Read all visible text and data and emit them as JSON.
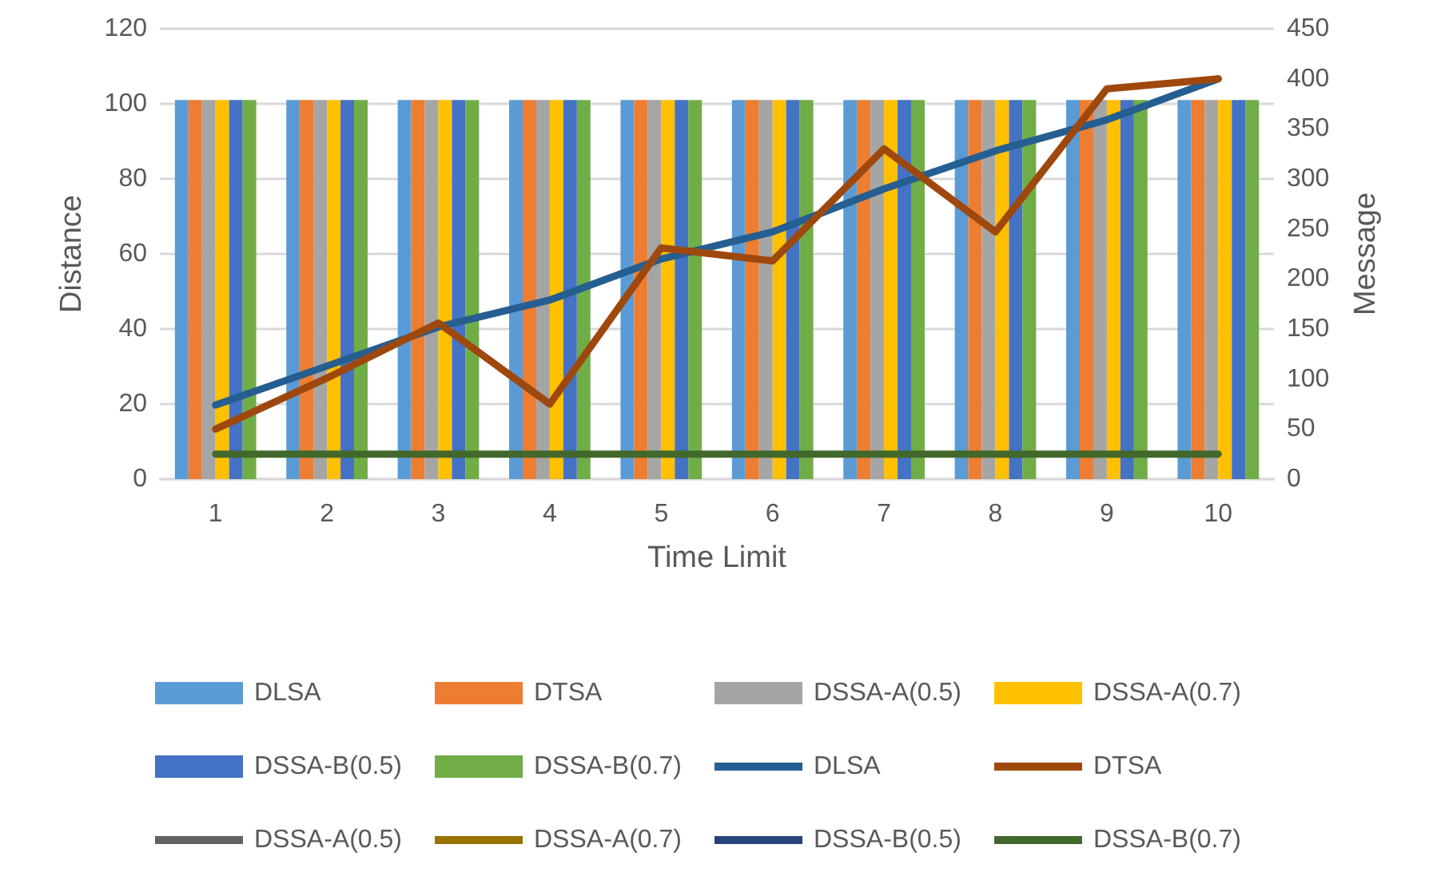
{
  "chart_data": {
    "type": "bar",
    "xlabel": "Time Limit",
    "ylabel": "Distance",
    "y2label": "Message",
    "categories": [
      "1",
      "2",
      "3",
      "4",
      "5",
      "6",
      "7",
      "8",
      "9",
      "10"
    ],
    "ylim": [
      0,
      120
    ],
    "yticks": [
      0,
      20,
      40,
      60,
      80,
      100,
      120
    ],
    "y2lim": [
      0,
      450
    ],
    "y2ticks": [
      0,
      50,
      100,
      150,
      200,
      250,
      300,
      350,
      400,
      450
    ],
    "grid": "y",
    "legend": "bottom",
    "marker": "none",
    "line_style": "solid",
    "series": [
      {
        "name": "DLSA",
        "color": "#5b9bd5",
        "values": [
          101,
          101,
          101,
          101,
          101,
          101,
          101,
          101,
          101,
          101
        ]
      },
      {
        "name": "DTSA",
        "color": "#ed7d31",
        "values": [
          101,
          101,
          101,
          101,
          101,
          101,
          101,
          101,
          101,
          101
        ]
      },
      {
        "name": "DSSA-A(0.5)",
        "color": "#a5a5a5",
        "values": [
          101,
          101,
          101,
          101,
          101,
          101,
          101,
          101,
          101,
          101
        ]
      },
      {
        "name": "DSSA-A(0.7)",
        "color": "#ffc000",
        "values": [
          101,
          101,
          101,
          101,
          101,
          101,
          101,
          101,
          101,
          101
        ]
      },
      {
        "name": "DSSA-B(0.5)",
        "color": "#4472c4",
        "values": [
          101,
          101,
          101,
          101,
          101,
          101,
          101,
          101,
          101,
          101
        ]
      },
      {
        "name": "DSSA-B(0.7)",
        "color": "#70ad47",
        "values": [
          101,
          101,
          101,
          101,
          101,
          101,
          101,
          101,
          101,
          101
        ]
      },
      {
        "name": "DLSA",
        "type": "line",
        "axis": "y2",
        "color": "#255e91",
        "values": [
          74,
          113,
          152,
          179,
          220,
          247,
          290,
          328,
          359,
          400
        ]
      },
      {
        "name": "DTSA",
        "type": "line",
        "axis": "y2",
        "color": "#9e480e",
        "values": [
          50,
          101,
          156,
          75,
          231,
          218,
          330,
          247,
          390,
          400
        ]
      },
      {
        "name": "DSSA-A(0.5)",
        "type": "line",
        "axis": "y2",
        "color": "#636363",
        "values": [
          null,
          null,
          null,
          null,
          null,
          null,
          null,
          null,
          null,
          null
        ]
      },
      {
        "name": "DSSA-A(0.7)",
        "type": "line",
        "axis": "y2",
        "color": "#997300",
        "values": [
          null,
          null,
          null,
          null,
          null,
          null,
          null,
          null,
          null,
          null
        ]
      },
      {
        "name": "DSSA-B(0.5)",
        "type": "line",
        "axis": "y2",
        "color": "#264478",
        "values": [
          null,
          null,
          null,
          null,
          null,
          null,
          null,
          null,
          null,
          null
        ]
      },
      {
        "name": "DSSA-B(0.7)",
        "type": "line",
        "axis": "y2",
        "color": "#43682b",
        "values": [
          25,
          25,
          25,
          25,
          25,
          25,
          25,
          25,
          25,
          25
        ]
      }
    ]
  }
}
